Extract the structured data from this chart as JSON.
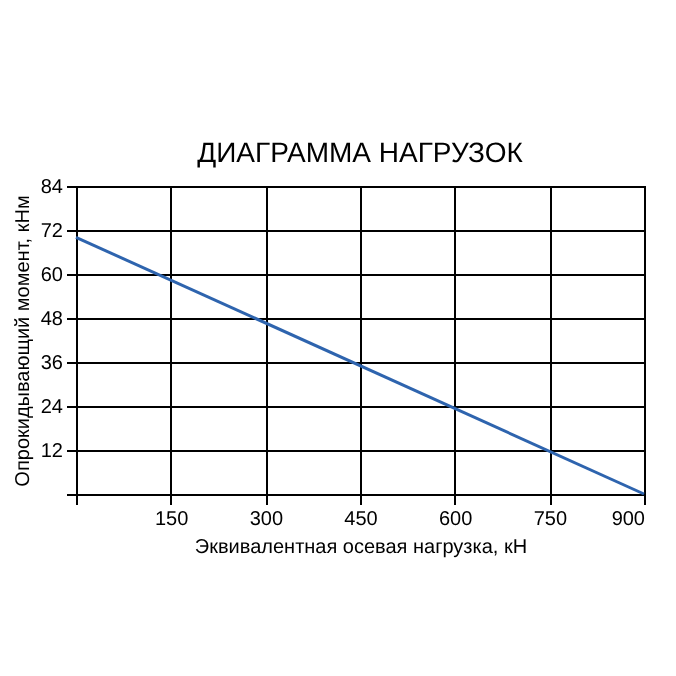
{
  "chart_data": {
    "type": "line",
    "title": "ДИАГРАММА НАГРУЗОК",
    "xlabel": "Эквивалентная осевая нагрузка, кН",
    "ylabel": "Опрокидывающий момент, кНм",
    "x": [
      0,
      900
    ],
    "series": [
      {
        "color": "#2e64ae",
        "values": [
          70,
          0
        ]
      }
    ],
    "xlim": [
      0,
      900
    ],
    "xticks": [
      {
        "value": 0,
        "label": null
      },
      150,
      300,
      450,
      600,
      750,
      900
    ],
    "ylim": [
      0,
      84
    ],
    "yticks": [
      {
        "value": 0,
        "label": null
      },
      12,
      24,
      36,
      48,
      60,
      72,
      84
    ],
    "grid": true,
    "marker": "none",
    "line_style": "solid"
  }
}
